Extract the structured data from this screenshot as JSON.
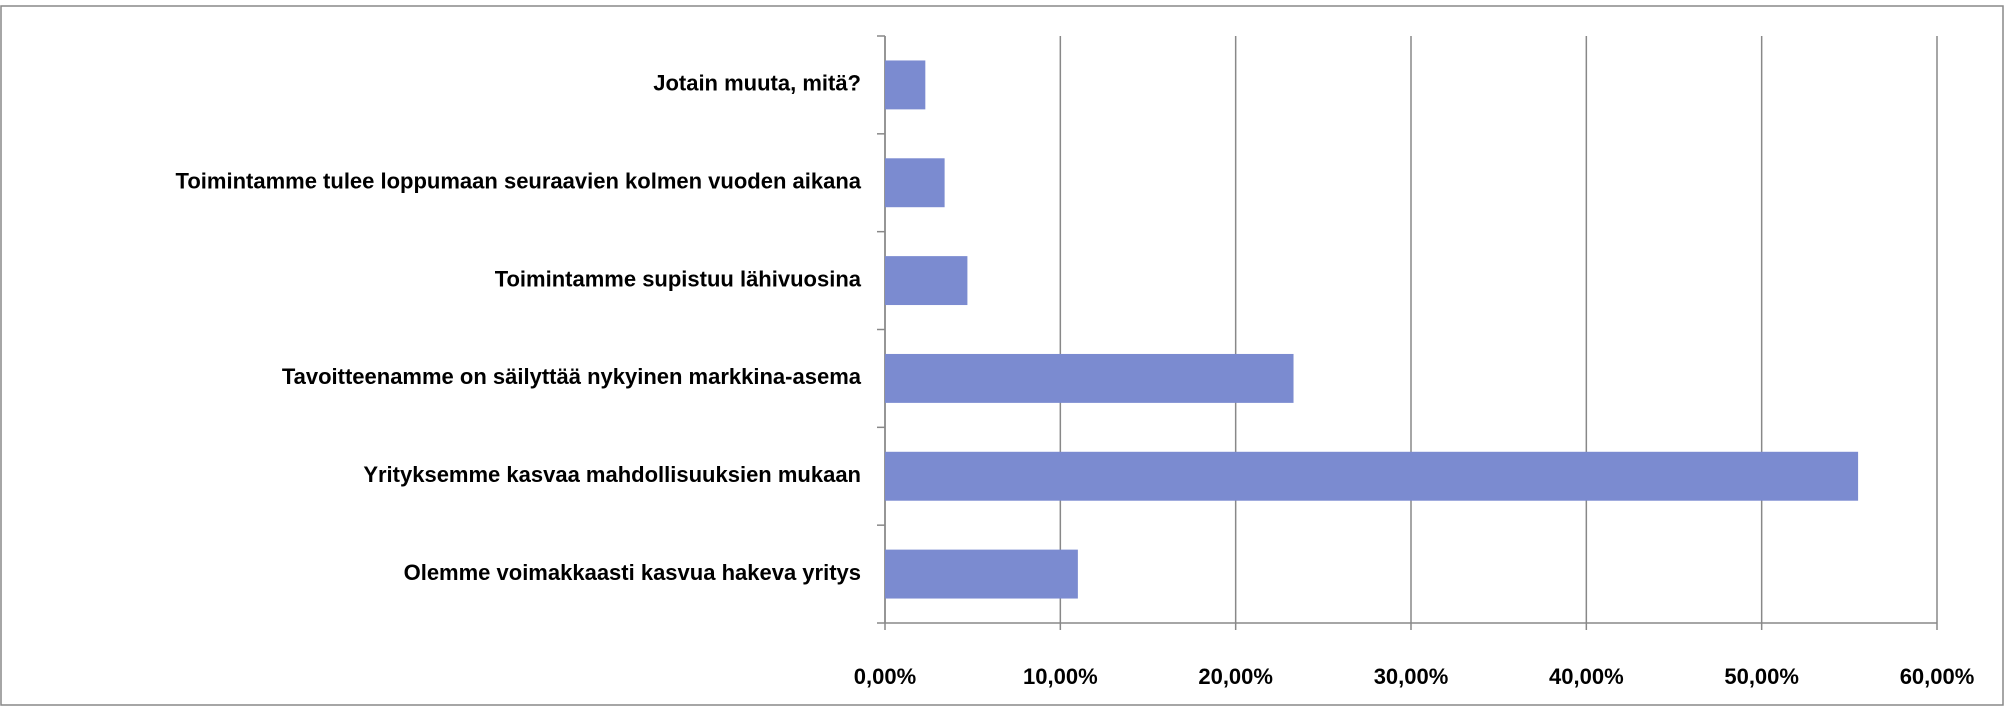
{
  "chart_data": {
    "type": "bar",
    "orientation": "horizontal",
    "categories": [
      "Jotain muuta, mitä?",
      "Toimintamme tulee loppumaan seuraavien kolmen vuoden aikana",
      "Toimintamme supistuu lähivuosina",
      "Tavoitteenamme on säilyttää nykyinen markkina-asema",
      "Yrityksemme kasvaa mahdollisuuksien mukaan",
      "Olemme voimakkaasti kasvua hakeva yritys"
    ],
    "values": [
      2.3,
      3.4,
      4.7,
      23.3,
      55.5,
      11.0
    ],
    "color": "#7b8bd0",
    "xlim": [
      0,
      60
    ],
    "xticks": [
      {
        "value": 0,
        "label": "0,00%"
      },
      {
        "value": 10,
        "label": "10,00%"
      },
      {
        "value": 20,
        "label": "20,00%"
      },
      {
        "value": 30,
        "label": "30,00%"
      },
      {
        "value": 40,
        "label": "40,00%"
      },
      {
        "value": 50,
        "label": "50,00%"
      },
      {
        "value": 60,
        "label": "60,00%"
      }
    ],
    "grid": true
  }
}
